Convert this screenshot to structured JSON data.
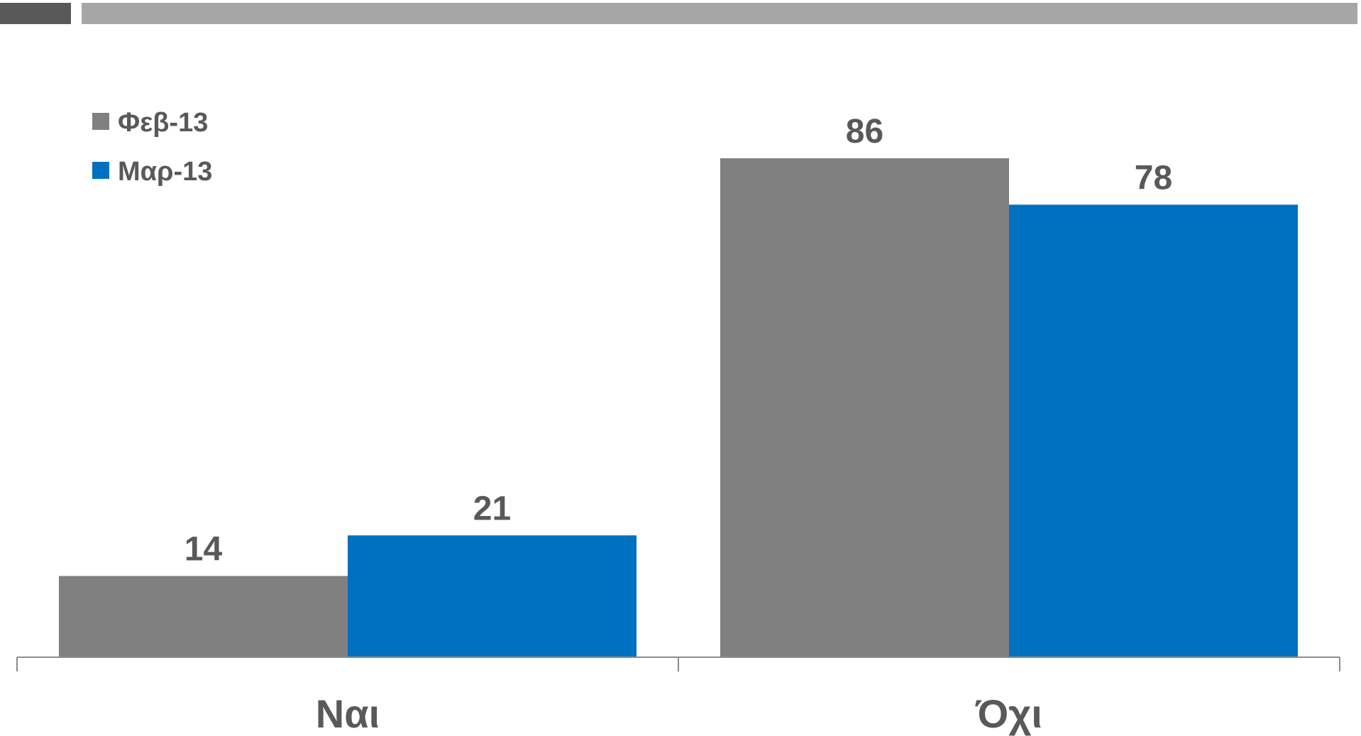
{
  "chart_data": {
    "type": "bar",
    "categories": [
      "Ναι",
      "Όχι"
    ],
    "series": [
      {
        "name": "Φεβ-13",
        "values": [
          14,
          86
        ],
        "color": "#808080"
      },
      {
        "name": "Μαρ-13",
        "values": [
          21,
          78
        ],
        "color": "#0070C0"
      }
    ],
    "title": "",
    "xlabel": "",
    "ylabel": "",
    "ylim": [
      0,
      86
    ],
    "grid": false,
    "legend": "top-left",
    "data_labels": true
  },
  "colors": {
    "accent_dark": "#595959",
    "accent_light": "#A6A6A6",
    "label_text": "#595959"
  }
}
